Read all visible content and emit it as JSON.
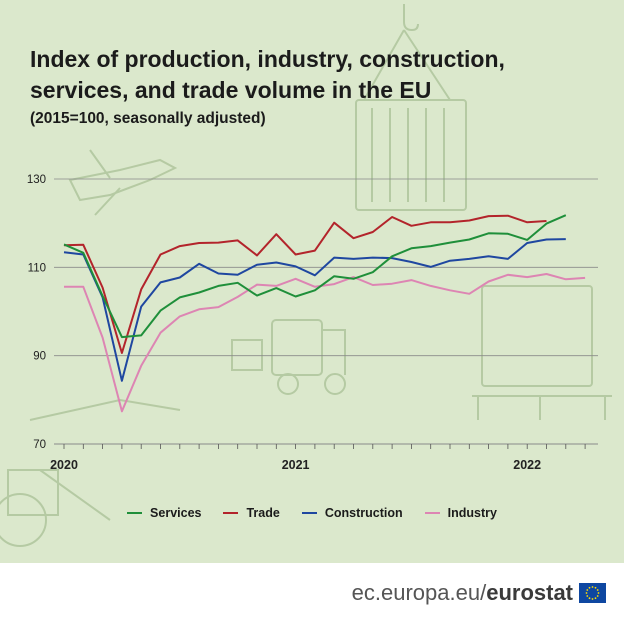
{
  "header": {
    "title": "Index of production, industry, construction, services, and trade volume in the EU",
    "subtitle": "(2015=100, seasonally adjusted)"
  },
  "footer": {
    "site": "ec.europa.eu/",
    "brand": "eurostat",
    "flag_icon": "eu-flag-icon"
  },
  "colors": {
    "background": "#dbe8cc",
    "services": "#1f8f3a",
    "trade": "#b3242b",
    "construction": "#1f47a0",
    "industry": "#dd85b3",
    "grid": "#8a8a8a"
  },
  "chart_data": {
    "type": "line",
    "title": "Index of production, industry, construction, services, and trade volume in the EU",
    "subtitle": "(2015=100, seasonally adjusted)",
    "xlabel": "",
    "ylabel": "",
    "ylim": [
      70,
      130
    ],
    "yticks": [
      70,
      90,
      110,
      130
    ],
    "xticks": [
      {
        "label": "2020",
        "index": 0
      },
      {
        "label": "2021",
        "index": 12
      },
      {
        "label": "2022",
        "index": 24
      }
    ],
    "x": [
      "2020-01",
      "2020-02",
      "2020-03",
      "2020-04",
      "2020-05",
      "2020-06",
      "2020-07",
      "2020-08",
      "2020-09",
      "2020-10",
      "2020-11",
      "2020-12",
      "2021-01",
      "2021-02",
      "2021-03",
      "2021-04",
      "2021-05",
      "2021-06",
      "2021-07",
      "2021-08",
      "2021-09",
      "2021-10",
      "2021-11",
      "2021-12",
      "2022-01",
      "2022-02",
      "2022-03",
      "2022-04"
    ],
    "grid": true,
    "legend_position": "bottom",
    "series": [
      {
        "name": "Services",
        "values": [
          115.2,
          113.3,
          103.5,
          94.2,
          94.6,
          100.2,
          103.2,
          104.3,
          105.8,
          106.5,
          103.6,
          105.3,
          103.4,
          104.8,
          108.0,
          107.4,
          108.9,
          112.5,
          114.3,
          114.8,
          115.6,
          116.3,
          117.7,
          117.6,
          116.2,
          119.9,
          121.8,
          null
        ]
      },
      {
        "name": "Trade",
        "values": [
          115.0,
          115.1,
          105.4,
          90.6,
          105.0,
          112.9,
          114.8,
          115.5,
          115.6,
          116.1,
          112.7,
          117.5,
          112.9,
          113.8,
          120.1,
          116.6,
          118.0,
          121.4,
          119.4,
          120.2,
          120.2,
          120.6,
          121.6,
          121.7,
          120.2,
          120.5,
          null,
          null
        ]
      },
      {
        "name": "Construction",
        "values": [
          113.4,
          112.9,
          103.2,
          84.3,
          101.1,
          106.6,
          107.7,
          110.8,
          108.6,
          108.3,
          110.6,
          111.1,
          110.2,
          108.2,
          112.2,
          111.9,
          112.2,
          112.1,
          111.2,
          110.1,
          111.5,
          111.9,
          112.5,
          111.9,
          115.5,
          116.3,
          116.4,
          null
        ]
      },
      {
        "name": "Industry",
        "values": [
          105.6,
          105.6,
          94.1,
          77.4,
          87.7,
          95.2,
          98.9,
          100.5,
          101.0,
          103.3,
          106.1,
          105.8,
          107.4,
          105.6,
          106.2,
          107.8,
          106.0,
          106.3,
          107.1,
          105.8,
          104.8,
          104.0,
          106.8,
          108.3,
          107.8,
          108.5,
          107.3,
          107.6
        ]
      }
    ]
  }
}
